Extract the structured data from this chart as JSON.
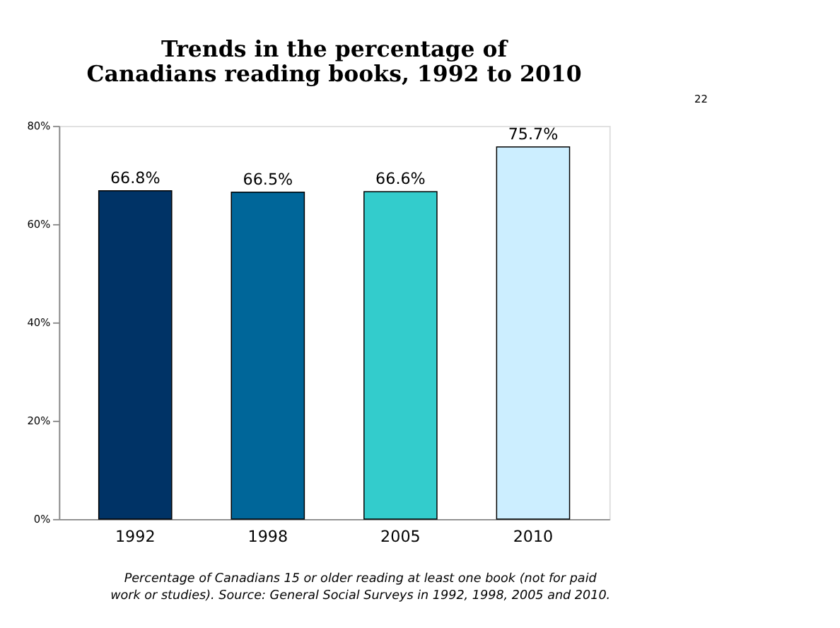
{
  "chart_data": {
    "type": "bar",
    "title": "Trends in the percentage of Canadians reading books, 1992 to 2010",
    "categories": [
      "1992",
      "1998",
      "2005",
      "2010"
    ],
    "values": [
      66.8,
      66.5,
      66.6,
      75.7
    ],
    "colors": [
      "#003366",
      "#006699",
      "#33cccc",
      "#cceeff"
    ],
    "value_labels": [
      "66.8%",
      "66.5%",
      "66.6%",
      "75.7%"
    ],
    "ylim": [
      0,
      80
    ],
    "yticks": [
      {
        "value": 0,
        "label": "0%"
      },
      {
        "value": 20,
        "label": "20%"
      },
      {
        "value": 40,
        "label": "40%"
      },
      {
        "value": 60,
        "label": "60%"
      },
      {
        "value": 80,
        "label": "80%"
      }
    ],
    "grid": false,
    "annotations": [
      "Percentage of Canadians 15 or older reading at least one book (not for paid work or studies). Source: General Social Surveys in 1992, 1998, 2005 and 2010.",
      "22"
    ]
  }
}
